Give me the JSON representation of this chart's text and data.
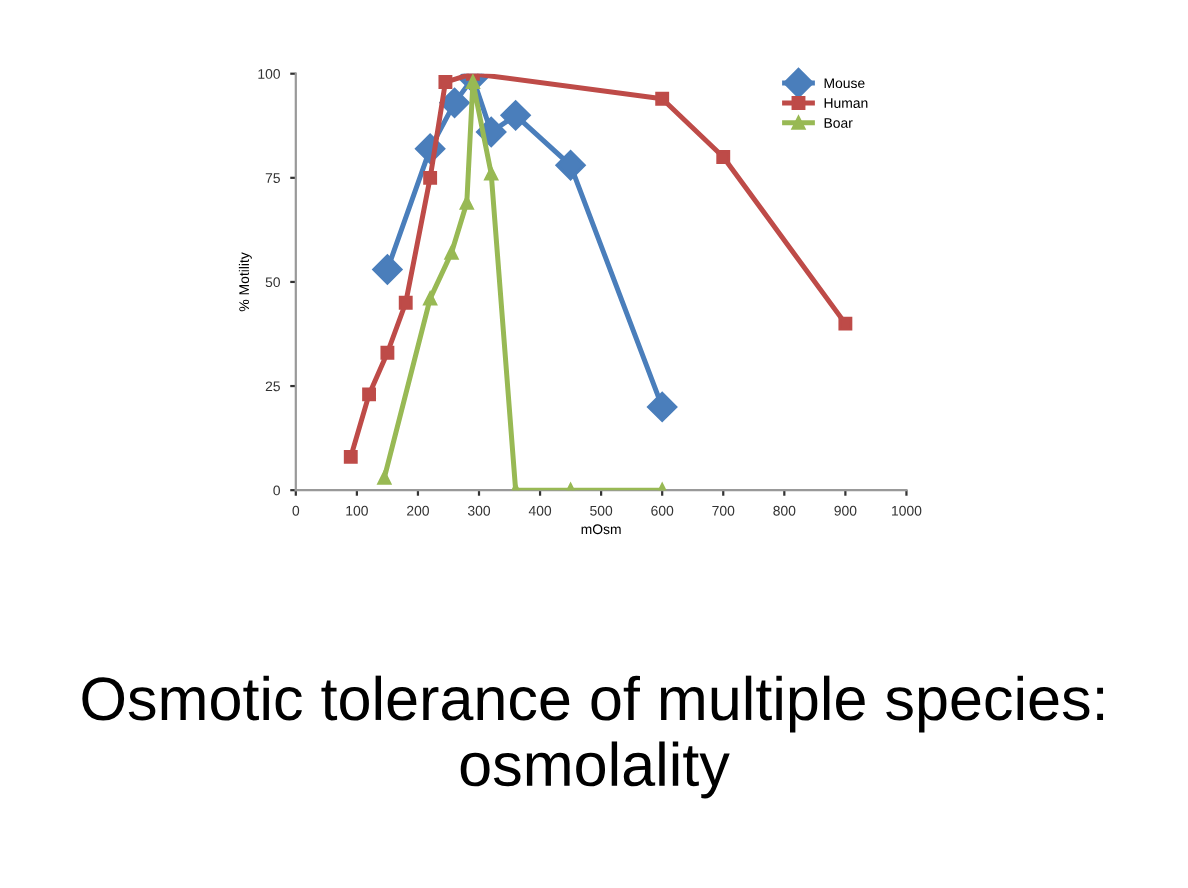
{
  "chart_data": {
    "type": "line",
    "title": "Osmotic tolerance of multiple species: osmolality",
    "xlabel": "mOsm",
    "ylabel": "% Motility",
    "xlim": [
      0,
      1000
    ],
    "xticks": [
      0,
      100,
      200,
      300,
      400,
      500,
      600,
      700,
      800,
      900,
      1000
    ],
    "ylim": [
      0,
      100
    ],
    "yticks": [
      0,
      25,
      50,
      75,
      100
    ],
    "grid": false,
    "legend": "top right",
    "line_style": "solid",
    "series": [
      {
        "name": "Mouse",
        "color": "#4a7ebb",
        "marker": "diamond",
        "x": [
          150,
          220,
          260,
          290,
          320,
          360,
          450,
          600
        ],
        "values": [
          53,
          82,
          93,
          99,
          86,
          90,
          78,
          20
        ]
      },
      {
        "name": "Human",
        "color": "#be4b48",
        "marker": "square",
        "x": [
          90,
          120,
          150,
          180,
          220,
          245,
          290,
          600,
          700,
          900
        ],
        "values": [
          8,
          23,
          33,
          45,
          75,
          98,
          100,
          94,
          80,
          40
        ]
      },
      {
        "name": "Boar",
        "color": "#98b954",
        "marker": "triangle",
        "x": [
          145,
          220,
          255,
          280,
          290,
          320,
          360,
          450,
          600
        ],
        "values": [
          3,
          46,
          57,
          69,
          98,
          76,
          0,
          0,
          0
        ]
      }
    ]
  }
}
